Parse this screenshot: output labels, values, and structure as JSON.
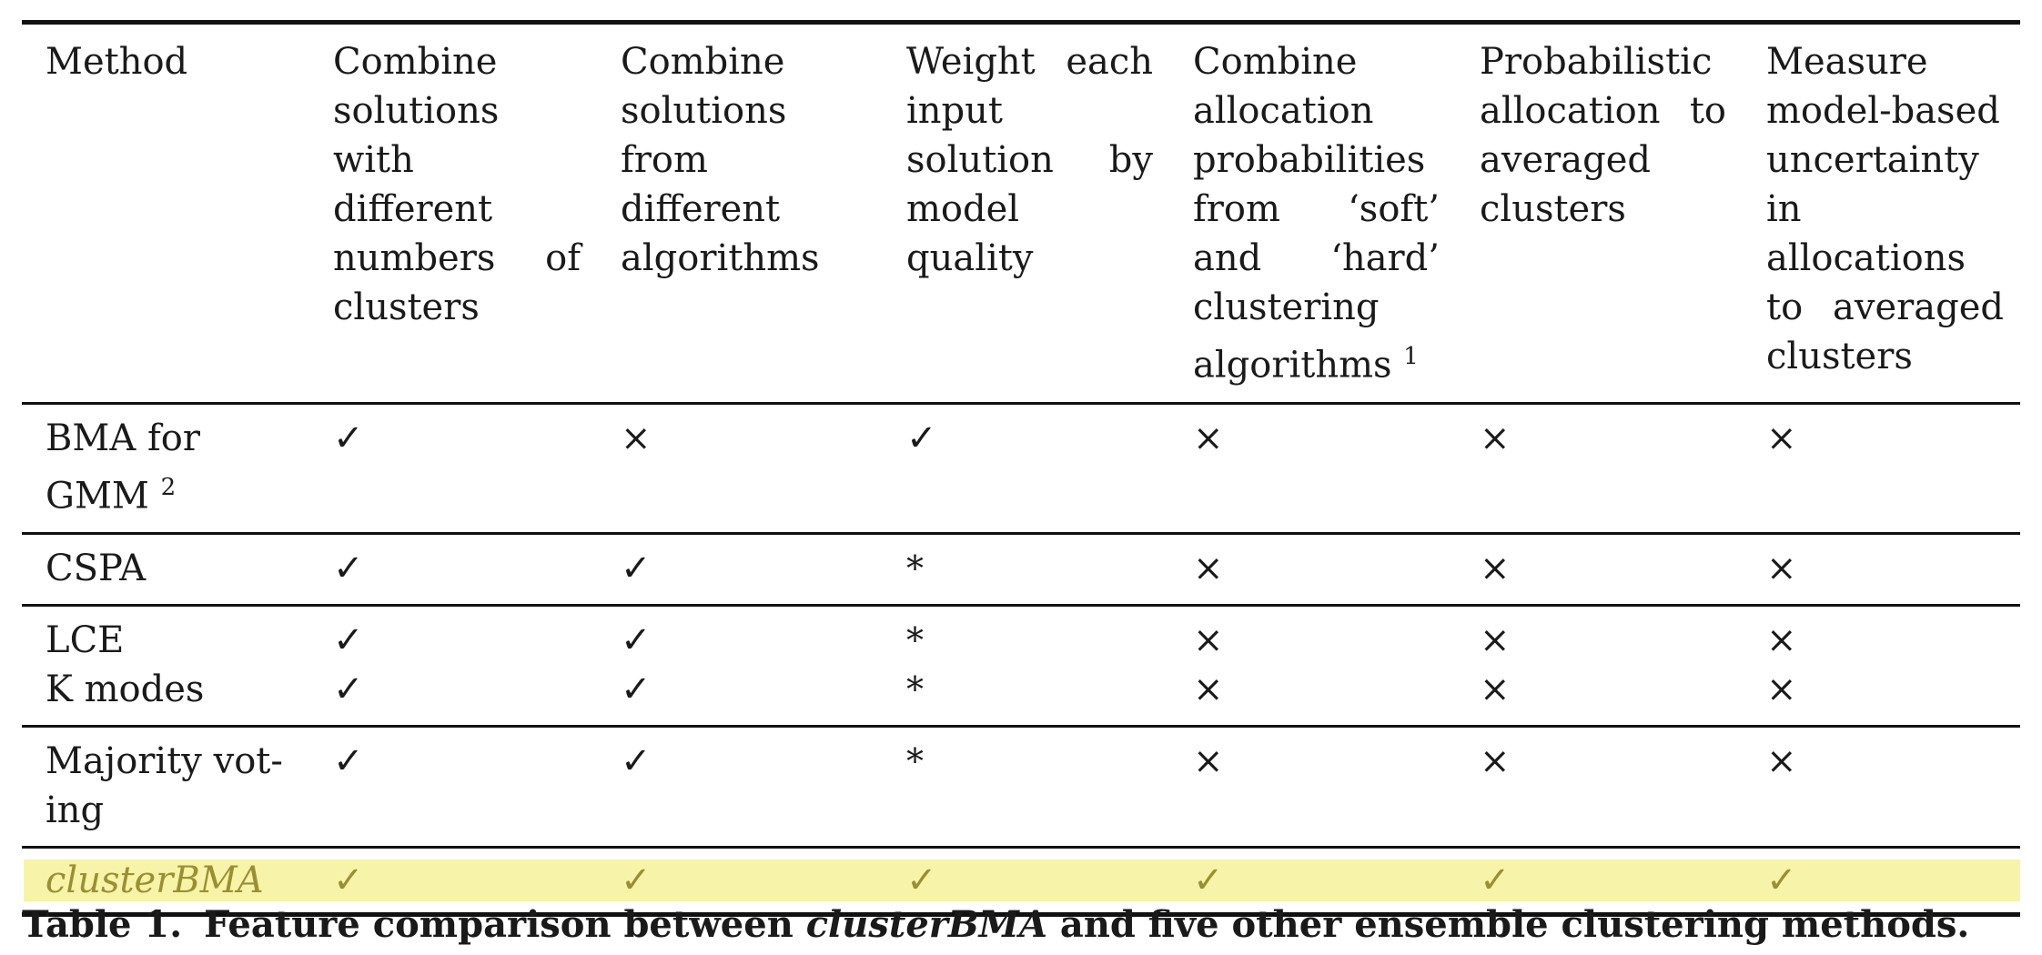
{
  "table": {
    "headers": [
      "Method",
      "Combine solutions with different numbers of clusters",
      "Combine solutions from different algorithms",
      "Weight each input solution by model quality",
      "Combine allocation probabilities from ‘soft’ and ‘hard’ clustering algorithms",
      "Probabilistic allocation to averaged clusters",
      "Measure model-based uncertainty in allocations to averaged clusters"
    ],
    "header_footnote": "1",
    "rows": [
      {
        "method": "BMA for GMM",
        "method_footnote": "2",
        "cells": [
          "✓",
          "×",
          "✓",
          "×",
          "×",
          "×"
        ]
      },
      {
        "method": "CSPA",
        "cells": [
          "✓",
          "✓",
          "*",
          "×",
          "×",
          "×"
        ]
      },
      {
        "method": "LCE",
        "cells": [
          "✓",
          "✓",
          "*",
          "×",
          "×",
          "×"
        ]
      },
      {
        "method": "K modes",
        "cells": [
          "✓",
          "✓",
          "*",
          "×",
          "×",
          "×"
        ]
      },
      {
        "method": "Majority vot-ing",
        "cells": [
          "✓",
          "✓",
          "*",
          "×",
          "×",
          "×"
        ]
      },
      {
        "method": "clusterBMA",
        "cells": [
          "✓",
          "✓",
          "✓",
          "✓",
          "✓",
          "✓"
        ],
        "highlight_color": "#f7f3a8",
        "text_color": "#9a8f32"
      }
    ]
  },
  "caption": {
    "label": "Table 1.",
    "text_before": "Feature comparison between ",
    "emphasis": "clusterBMA",
    "text_after": " and five other ensemble clustering methods."
  }
}
